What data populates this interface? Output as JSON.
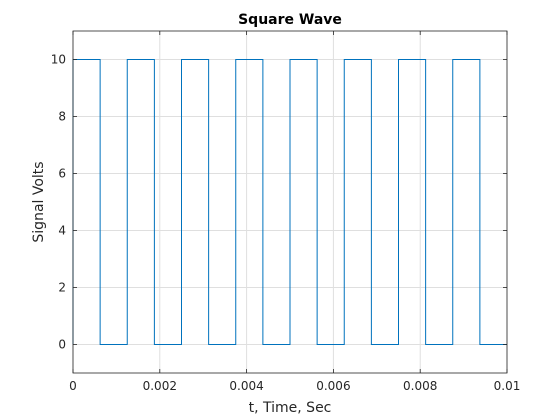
{
  "chart_data": {
    "type": "line",
    "title": "Square Wave",
    "xlabel": "t, Time, Sec",
    "ylabel": "Signal Volts",
    "xlim": [
      0,
      0.01
    ],
    "ylim": [
      -1,
      11
    ],
    "xticks": [
      0,
      0.002,
      0.004,
      0.006,
      0.008,
      0.01
    ],
    "xtick_labels": [
      "0",
      "0.002",
      "0.004",
      "0.006",
      "0.008",
      "0.01"
    ],
    "yticks": [
      0,
      2,
      4,
      6,
      8,
      10
    ],
    "ytick_labels": [
      "0",
      "2",
      "4",
      "6",
      "8",
      "10"
    ],
    "grid": true,
    "series": [
      {
        "color": "#0072bd",
        "x": [
          0,
          0,
          0.000625,
          0.000625,
          0.00125,
          0.00125,
          0.001875,
          0.001875,
          0.0025,
          0.0025,
          0.003125,
          0.003125,
          0.00375,
          0.00375,
          0.004375,
          0.004375,
          0.005,
          0.005,
          0.005625,
          0.005625,
          0.00625,
          0.00625,
          0.006875,
          0.006875,
          0.0075,
          0.0075,
          0.008125,
          0.008125,
          0.00875,
          0.00875,
          0.009375,
          0.009375,
          0.01
        ],
        "y": [
          0,
          10,
          10,
          0,
          0,
          10,
          10,
          0,
          0,
          10,
          10,
          0,
          0,
          10,
          10,
          0,
          0,
          10,
          10,
          0,
          0,
          10,
          10,
          0,
          0,
          10,
          10,
          0,
          0,
          10,
          10,
          0,
          0
        ]
      }
    ]
  }
}
